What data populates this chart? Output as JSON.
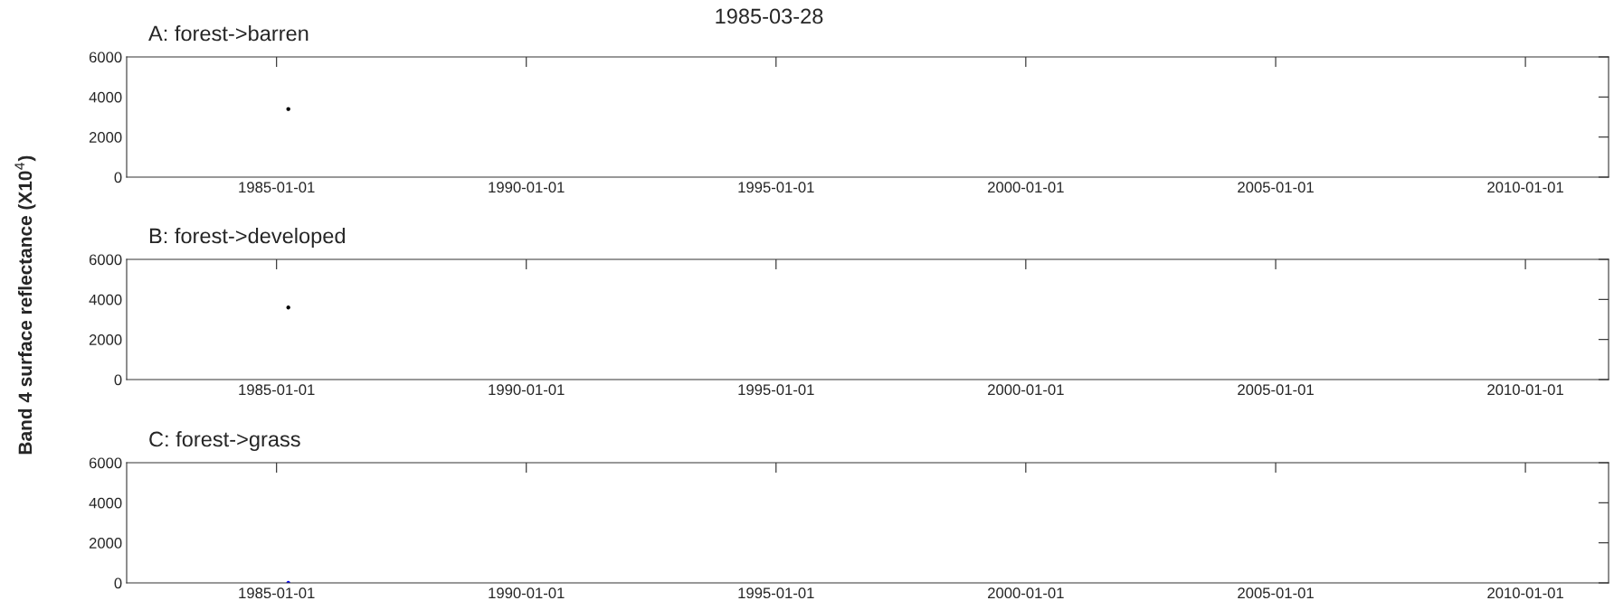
{
  "chart_data": [
    {
      "type": "scatter",
      "title": "A: forest->barren",
      "annotations": [
        "1985-03-28"
      ],
      "x": [
        "1985-03-28"
      ],
      "values": [
        3400
      ],
      "color": "#000000",
      "marker": "circle",
      "xlim": [
        "1982-01-01",
        "2011-09-01"
      ],
      "xticks": [
        "1985-01-01",
        "1990-01-01",
        "1995-01-01",
        "2000-01-01",
        "2005-01-01",
        "2010-01-01"
      ],
      "ylim": [
        0,
        6000
      ],
      "yticks": [
        0,
        2000,
        4000,
        6000
      ],
      "grid": false,
      "legend": false
    },
    {
      "type": "scatter",
      "title": "B: forest->developed",
      "ylabel": "Band 4 surface reflectance (X10$^{4}$)",
      "x": [
        "1985-03-28"
      ],
      "values": [
        3600
      ],
      "color": "#000000",
      "marker": "circle",
      "xlim": [
        "1982-01-01",
        "2011-09-01"
      ],
      "xticks": [
        "1985-01-01",
        "1990-01-01",
        "1995-01-01",
        "2000-01-01",
        "2005-01-01",
        "2010-01-01"
      ],
      "ylim": [
        0,
        6000
      ],
      "yticks": [
        0,
        2000,
        4000,
        6000
      ],
      "grid": false,
      "legend": false
    },
    {
      "type": "scatter",
      "title": "C: forest->grass",
      "x": [
        "1985-03-28"
      ],
      "values": [
        0
      ],
      "color": "#0000ff",
      "marker": "circle",
      "xlim": [
        "1982-01-01",
        "2011-09-01"
      ],
      "xticks": [
        "1985-01-01",
        "1990-01-01",
        "1995-01-01",
        "2000-01-01",
        "2005-01-01",
        "2010-01-01"
      ],
      "ylim": [
        0,
        6000
      ],
      "yticks": [
        0,
        2000,
        4000,
        6000
      ],
      "grid": false,
      "legend": false
    }
  ]
}
